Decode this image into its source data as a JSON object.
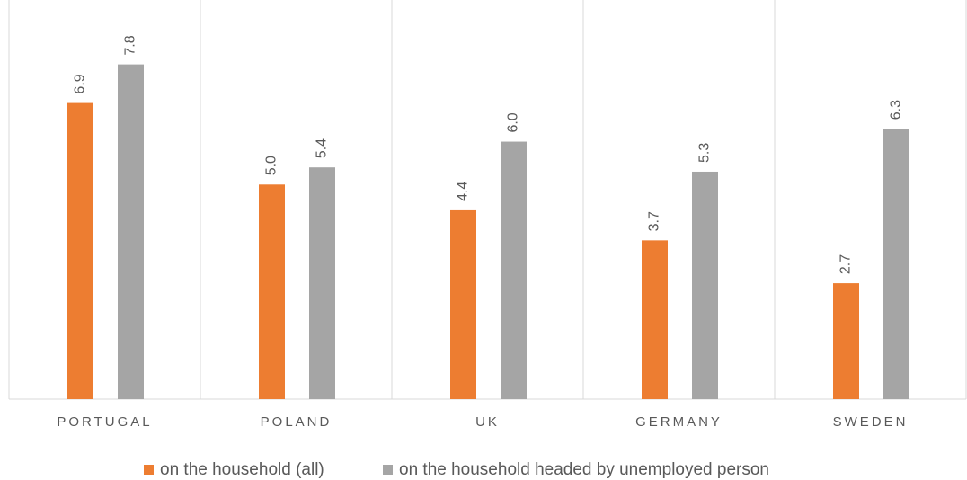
{
  "chart_data": {
    "type": "bar",
    "categories": [
      "PORTUGAL",
      "POLAND",
      "UK",
      "GERMANY",
      "SWEDEN"
    ],
    "series": [
      {
        "name": "on the household (all)",
        "color": "#ed7d31",
        "values": [
          6.9,
          5.0,
          4.4,
          3.7,
          2.7
        ],
        "value_labels": [
          "6.9",
          "5.0",
          "4.4",
          "3.7",
          "2.7"
        ]
      },
      {
        "name": "on the household headed by unemployed person",
        "color": "#a5a5a5",
        "values": [
          7.8,
          5.4,
          6.0,
          5.3,
          6.3
        ],
        "value_labels": [
          "7.8",
          "5.4",
          "6.0",
          "5.3",
          "6.3"
        ]
      }
    ],
    "ylim": [
      0,
      9.3
    ]
  }
}
